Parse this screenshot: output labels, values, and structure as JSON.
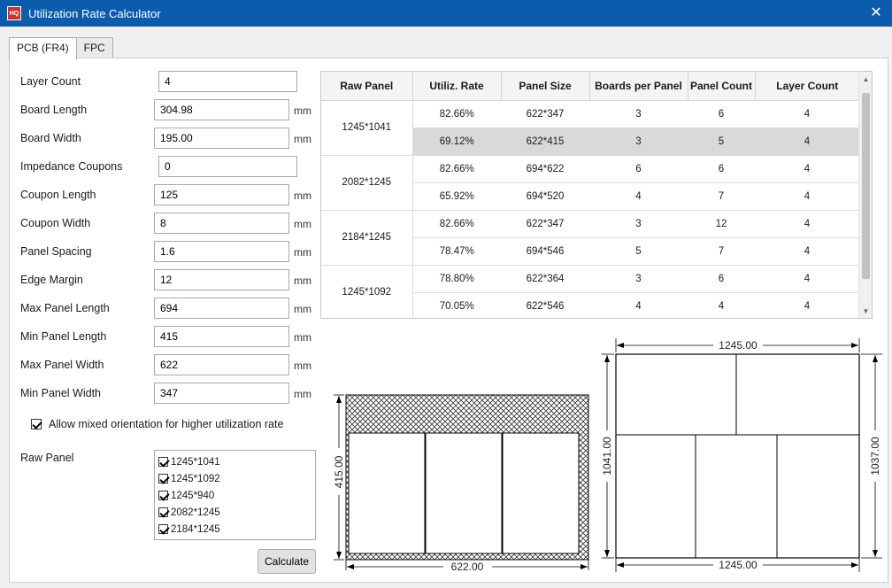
{
  "window": {
    "title": "Utilization Rate Calculator",
    "app_icon_text": "HQ"
  },
  "tabs": [
    {
      "label": "PCB (FR4)"
    },
    {
      "label": "FPC"
    }
  ],
  "form": {
    "layer_count": {
      "label": "Layer Count",
      "value": "4"
    },
    "board_length": {
      "label": "Board Length",
      "value": "304.98",
      "unit": "mm"
    },
    "board_width": {
      "label": "Board Width",
      "value": "195.00",
      "unit": "mm"
    },
    "impedance_coupons": {
      "label": "Impedance Coupons",
      "value": "0"
    },
    "coupon_length": {
      "label": "Coupon Length",
      "value": "125",
      "unit": "mm"
    },
    "coupon_width": {
      "label": "Coupon Width",
      "value": "8",
      "unit": "mm"
    },
    "panel_spacing": {
      "label": "Panel Spacing",
      "value": "1.6",
      "unit": "mm"
    },
    "edge_margin": {
      "label": "Edge Margin",
      "value": "12",
      "unit": "mm"
    },
    "max_panel_length": {
      "label": "Max Panel Length",
      "value": "694",
      "unit": "mm"
    },
    "min_panel_length": {
      "label": "Min Panel Length",
      "value": "415",
      "unit": "mm"
    },
    "max_panel_width": {
      "label": "Max Panel Width",
      "value": "622",
      "unit": "mm"
    },
    "min_panel_width": {
      "label": "Min Panel Width",
      "value": "347",
      "unit": "mm"
    }
  },
  "mixed_orientation": {
    "label": "Allow mixed orientation for higher utilization rate",
    "checked": true
  },
  "raw_panel": {
    "label": "Raw Panel",
    "items": [
      {
        "label": "1245*1041",
        "checked": true
      },
      {
        "label": "1245*1092",
        "checked": true
      },
      {
        "label": "1245*940",
        "checked": true
      },
      {
        "label": "2082*1245",
        "checked": true
      },
      {
        "label": "2184*1245",
        "checked": true
      }
    ]
  },
  "calculate_label": "Calculate",
  "results": {
    "headers": [
      "Raw Panel",
      "Utiliz. Rate",
      "Panel Size",
      "Boards per Panel",
      "Panel Count",
      "Layer Count"
    ],
    "groups": [
      {
        "raw_panel": "1245*1041",
        "rows": [
          {
            "rate": "82.66%",
            "size": "622*347",
            "boards": "3",
            "count": "6",
            "layers": "4"
          },
          {
            "rate": "69.12%",
            "size": "622*415",
            "boards": "3",
            "count": "5",
            "layers": "4",
            "selected": true
          }
        ]
      },
      {
        "raw_panel": "2082*1245",
        "rows": [
          {
            "rate": "82.66%",
            "size": "694*622",
            "boards": "6",
            "count": "6",
            "layers": "4"
          },
          {
            "rate": "65.92%",
            "size": "694*520",
            "boards": "4",
            "count": "7",
            "layers": "4"
          }
        ]
      },
      {
        "raw_panel": "2184*1245",
        "rows": [
          {
            "rate": "82.66%",
            "size": "622*347",
            "boards": "3",
            "count": "12",
            "layers": "4"
          },
          {
            "rate": "78.47%",
            "size": "694*546",
            "boards": "5",
            "count": "7",
            "layers": "4"
          }
        ]
      },
      {
        "raw_panel": "1245*1092",
        "rows": [
          {
            "rate": "78.80%",
            "size": "622*364",
            "boards": "3",
            "count": "6",
            "layers": "4"
          },
          {
            "rate": "70.05%",
            "size": "622*546",
            "boards": "4",
            "count": "4",
            "layers": "4"
          }
        ]
      }
    ]
  },
  "panel_diagram": {
    "width_label": "622.00",
    "height_label": "415.00"
  },
  "raw_diagram": {
    "top_label": "1245.00",
    "bottom_label": "1245.00",
    "left_label": "1041.00",
    "right_label": "1037.00"
  }
}
